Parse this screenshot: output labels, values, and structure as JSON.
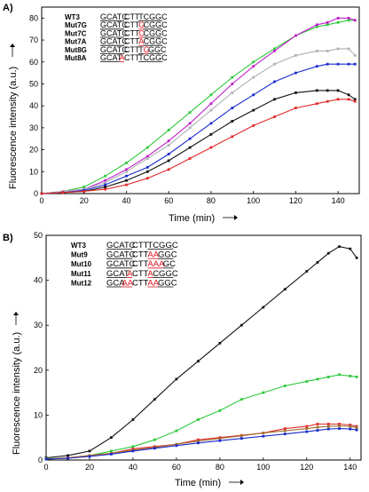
{
  "chart_data": [
    {
      "panel": "A)",
      "type": "line",
      "xlabel": "Time (min)",
      "ylabel": "Fluorescence intensity (a.u.)",
      "xlim": [
        0,
        150
      ],
      "ylim": [
        0,
        85
      ],
      "xticks": [
        0,
        20,
        40,
        60,
        80,
        100,
        120,
        140
      ],
      "yticks": [
        0,
        10,
        20,
        30,
        40,
        50,
        60,
        70,
        80
      ],
      "x": [
        0,
        10,
        20,
        30,
        40,
        50,
        60,
        70,
        80,
        90,
        100,
        110,
        120,
        130,
        135,
        140,
        145,
        148
      ],
      "series": [
        {
          "color": "#2ec83c",
          "values": [
            0,
            1,
            3,
            8,
            14,
            21,
            29,
            37,
            45,
            53,
            60,
            66,
            72,
            76,
            77,
            78,
            79,
            79
          ]
        },
        {
          "color": "#c020c8",
          "values": [
            0,
            1,
            2,
            6,
            11,
            17,
            24,
            32,
            41,
            50,
            58,
            65,
            72,
            77,
            78,
            80,
            80,
            79
          ]
        },
        {
          "color": "#b0b0b8",
          "values": [
            0,
            1,
            2,
            5,
            10,
            16,
            22,
            30,
            38,
            46,
            53,
            59,
            63,
            65,
            65,
            66,
            66,
            63
          ]
        },
        {
          "color": "#1a2bcc",
          "values": [
            0,
            0.5,
            1.5,
            4,
            8,
            12,
            18,
            25,
            32,
            39,
            45,
            51,
            55,
            58,
            59,
            59,
            59,
            59
          ]
        },
        {
          "color": "#111111",
          "values": [
            0,
            0.5,
            1,
            3,
            6,
            10,
            15,
            21,
            27,
            33,
            38,
            43,
            46,
            47,
            47,
            47,
            45,
            43
          ]
        },
        {
          "color": "#e02a2a",
          "values": [
            0,
            0.5,
            1,
            2,
            4,
            7,
            11,
            16,
            21,
            26,
            31,
            35,
            39,
            41,
            42,
            43,
            43,
            42
          ]
        }
      ],
      "legend": [
        {
          "name": "WT3",
          "seq": [
            [
              "GCATC",
              "u"
            ],
            [
              "CTT",
              ""
            ],
            [
              "TCGGC",
              "u"
            ]
          ]
        },
        {
          "name": "Mut7G",
          "seq": [
            [
              "GCATC",
              "u"
            ],
            [
              "CTT",
              ""
            ],
            [
              "G",
              "um"
            ],
            [
              "CGGC",
              "u"
            ]
          ]
        },
        {
          "name": "Mut7C",
          "seq": [
            [
              "GCATC",
              "u"
            ],
            [
              "CTT",
              ""
            ],
            [
              "C",
              "um"
            ],
            [
              "CGGC",
              "u"
            ]
          ]
        },
        {
          "name": "Mut7A",
          "seq": [
            [
              "GCATC",
              "u"
            ],
            [
              "CTT",
              ""
            ],
            [
              "A",
              "um"
            ],
            [
              "CGGC",
              "u"
            ]
          ]
        },
        {
          "name": "Mut8G",
          "seq": [
            [
              "GCATC",
              "u"
            ],
            [
              "CTT",
              ""
            ],
            [
              "T",
              "u"
            ],
            [
              "G",
              "um"
            ],
            [
              "GGC",
              "u"
            ]
          ]
        },
        {
          "name": "Mut8A",
          "seq": [
            [
              "GCAT",
              "u"
            ],
            [
              "A",
              "um"
            ],
            [
              "CTT",
              ""
            ],
            [
              "TCGGC",
              "u"
            ]
          ]
        }
      ]
    },
    {
      "panel": "B)",
      "type": "line",
      "xlabel": "Time (min)",
      "ylabel": "Fluorescence intensity (a.u.)",
      "xlim": [
        0,
        145
      ],
      "ylim": [
        0,
        50
      ],
      "xticks": [
        0,
        20,
        40,
        60,
        80,
        100,
        120,
        140
      ],
      "yticks": [
        0,
        10,
        20,
        30,
        40,
        50
      ],
      "x": [
        0,
        10,
        20,
        30,
        40,
        50,
        60,
        70,
        80,
        90,
        100,
        110,
        120,
        125,
        130,
        135,
        140,
        143
      ],
      "series": [
        {
          "color": "#111111",
          "values": [
            0.5,
            1,
            2,
            5,
            9,
            13.5,
            18,
            22,
            26,
            30,
            34,
            38,
            42,
            44,
            46,
            47.5,
            47,
            45
          ]
        },
        {
          "color": "#2ec83c",
          "values": [
            0.3,
            0.5,
            1,
            2,
            3,
            4.5,
            6.5,
            9,
            11,
            13.5,
            15,
            16.5,
            17.5,
            18,
            18.5,
            19,
            18.7,
            18.5
          ]
        },
        {
          "color": "#e02a2a",
          "values": [
            0.2,
            0.5,
            1,
            1.5,
            2.5,
            3,
            3.5,
            4.5,
            5,
            5.5,
            6,
            7,
            7.5,
            8,
            8,
            8,
            7.8,
            7.5
          ]
        },
        {
          "color": "#a07030",
          "values": [
            0.2,
            0.4,
            1,
            1.5,
            2.2,
            2.8,
            3.5,
            4.2,
            4.8,
            5.4,
            6,
            6.5,
            7,
            7.3,
            7.5,
            7.6,
            7.5,
            7.2
          ]
        },
        {
          "color": "#1a2bcc",
          "values": [
            0.2,
            0.4,
            0.8,
            1.3,
            2,
            2.6,
            3.2,
            3.8,
            4.3,
            4.8,
            5.3,
            5.8,
            6.3,
            6.6,
            6.9,
            7,
            6.9,
            6.7
          ]
        }
      ],
      "legend": [
        {
          "name": "WT3",
          "seq": [
            [
              "GCATC",
              "u"
            ],
            [
              "CTT",
              ""
            ],
            [
              "TCGGC",
              "u"
            ]
          ]
        },
        {
          "name": "Mut9",
          "seq": [
            [
              "GCATC",
              "u"
            ],
            [
              "CTT",
              ""
            ],
            [
              "AA",
              "um"
            ],
            [
              "GGC",
              "u"
            ]
          ]
        },
        {
          "name": "Mut10",
          "seq": [
            [
              "GCATC",
              "u"
            ],
            [
              "CTT",
              ""
            ],
            [
              "AAA",
              "um"
            ],
            [
              "GC",
              "u"
            ]
          ]
        },
        {
          "name": "Mut11",
          "seq": [
            [
              "GCAT",
              "u"
            ],
            [
              "A",
              "um"
            ],
            [
              "CTT",
              ""
            ],
            [
              "A",
              "um"
            ],
            [
              "CGGC",
              "u"
            ]
          ]
        },
        {
          "name": "Mut12",
          "seq": [
            [
              "GCA",
              "u"
            ],
            [
              "AA",
              "um"
            ],
            [
              "CTT",
              ""
            ],
            [
              "AA",
              "um"
            ],
            [
              "GGC",
              "u"
            ]
          ]
        }
      ]
    }
  ]
}
